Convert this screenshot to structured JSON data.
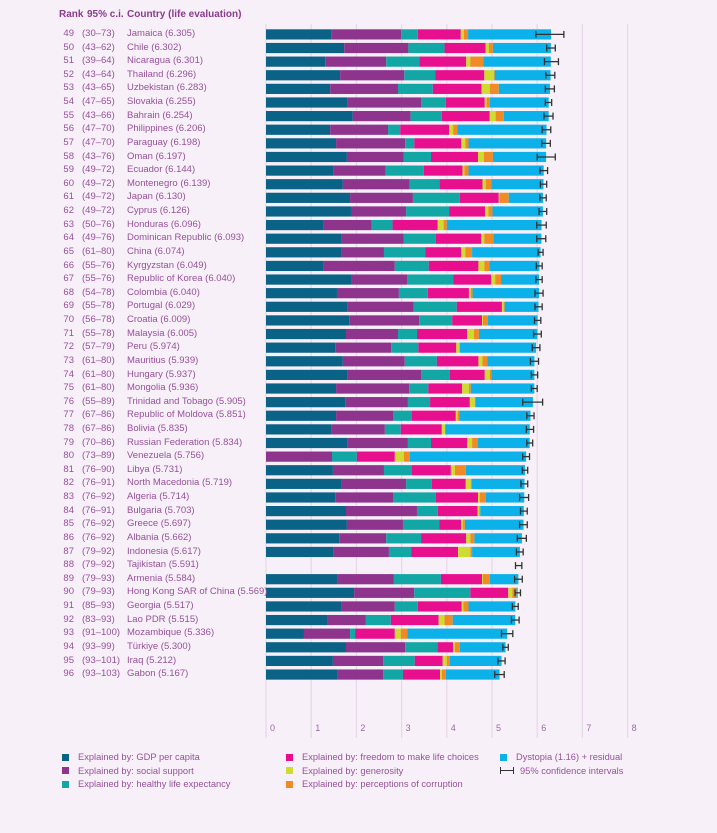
{
  "header": {
    "rank": "Rank",
    "ci": "95% c.i.",
    "country": "Country (life evaluation)"
  },
  "colors": {
    "gdp": "#0a6286",
    "social": "#8e348d",
    "health": "#12a7a4",
    "freedom": "#e80f8f",
    "generosity": "#cedc32",
    "corruption": "#f08a24",
    "dystopia": "#0db1ea",
    "ci": "#333333",
    "grid": "#e6d8e8"
  },
  "legend": [
    {
      "key": "gdp",
      "label": "Explained by: GDP per capita"
    },
    {
      "key": "social",
      "label": "Explained by: social support"
    },
    {
      "key": "health",
      "label": "Explained by: healthy life expectancy"
    },
    {
      "key": "freedom",
      "label": "Explained by: freedom to make life choices"
    },
    {
      "key": "generosity",
      "label": "Explained by: generosity"
    },
    {
      "key": "corruption",
      "label": "Explained by: perceptions of corruption"
    },
    {
      "key": "dystopia",
      "label": "Dystopia (1.16) + residual"
    },
    {
      "key": "ci",
      "label": "95% confidence intervals"
    }
  ],
  "chart_data": {
    "type": "bar",
    "orientation": "horizontal-stacked",
    "title": "",
    "xlabel": "",
    "ylabel": "",
    "xlim": [
      0,
      8
    ],
    "x_ticks": [
      "0",
      "1",
      "2",
      "3",
      "4",
      "5",
      "6",
      "7",
      "8"
    ],
    "grid": true,
    "legend_position": "bottom",
    "segment_keys": [
      "gdp",
      "social",
      "health",
      "freedom",
      "generosity",
      "corruption",
      "dystopia"
    ],
    "rows": [
      {
        "rank": "49",
        "ci": "(30–73)",
        "country": "Jamaica (6.305)",
        "score": 6.305,
        "seg": [
          1.44,
          1.55,
          0.37,
          0.95,
          0.07,
          0.09
        ],
        "ci_range": [
          5.97,
          6.59
        ]
      },
      {
        "rank": "50",
        "ci": "(43–62)",
        "country": "Chile (6.302)",
        "score": 6.302,
        "seg": [
          1.73,
          1.42,
          0.8,
          0.91,
          0.07,
          0.09
        ],
        "ci_range": [
          6.21,
          6.4
        ]
      },
      {
        "rank": "51",
        "ci": "(39–64)",
        "country": "Nicaragua (6.301)",
        "score": 6.301,
        "seg": [
          1.31,
          1.35,
          0.73,
          1.04,
          0.09,
          0.29
        ],
        "ci_range": [
          6.16,
          6.47
        ]
      },
      {
        "rank": "52",
        "ci": "(43–64)",
        "country": "Thailand (6.296)",
        "score": 6.296,
        "seg": [
          1.64,
          1.42,
          0.69,
          1.08,
          0.21,
          0.02
        ],
        "ci_range": [
          6.19,
          6.39
        ]
      },
      {
        "rank": "53",
        "ci": "(43–65)",
        "country": "Uzbekistan (6.283)",
        "score": 6.283,
        "seg": [
          1.42,
          1.5,
          0.77,
          1.08,
          0.18,
          0.2
        ],
        "ci_range": [
          6.18,
          6.38
        ]
      },
      {
        "rank": "54",
        "ci": "(47–65)",
        "country": "Slovakia (6.255)",
        "score": 6.255,
        "seg": [
          1.81,
          1.62,
          0.55,
          0.86,
          0.04,
          0.07
        ],
        "ci_range": [
          6.18,
          6.32
        ]
      },
      {
        "rank": "55",
        "ci": "(43–66)",
        "country": "Bahrain (6.254)",
        "score": 6.254,
        "seg": [
          1.92,
          1.28,
          0.69,
          1.06,
          0.13,
          0.18
        ],
        "ci_range": [
          6.15,
          6.35
        ]
      },
      {
        "rank": "56",
        "ci": "(47–70)",
        "country": "Philippines (6.206)",
        "score": 6.206,
        "seg": [
          1.42,
          1.28,
          0.27,
          1.08,
          0.09,
          0.09
        ],
        "ci_range": [
          6.11,
          6.3
        ]
      },
      {
        "rank": "57",
        "ci": "(47–70)",
        "country": "Paraguay (6.198)",
        "score": 6.198,
        "seg": [
          1.55,
          1.53,
          0.2,
          1.04,
          0.09,
          0.07
        ],
        "ci_range": [
          6.1,
          6.29
        ]
      },
      {
        "rank": "58",
        "ci": "(43–76)",
        "country": "Oman (6.197)",
        "score": 6.197,
        "seg": [
          1.79,
          1.26,
          0.6,
          1.04,
          0.13,
          0.2
        ],
        "ci_range": [
          6.0,
          6.4
        ]
      },
      {
        "rank": "59",
        "ci": "(49–72)",
        "country": "Ecuador (6.144)",
        "score": 6.144,
        "seg": [
          1.5,
          1.15,
          0.84,
          0.86,
          0.04,
          0.09
        ],
        "ci_range": [
          6.06,
          6.23
        ]
      },
      {
        "rank": "60",
        "ci": "(49–72)",
        "country": "Montenegro (6.139)",
        "score": 6.139,
        "seg": [
          1.7,
          1.48,
          0.66,
          0.95,
          0.07,
          0.13
        ],
        "ci_range": [
          6.07,
          6.21
        ]
      },
      {
        "rank": "61",
        "ci": "(49–72)",
        "country": "Japan (6.130)",
        "score": 6.13,
        "seg": [
          1.86,
          1.39,
          1.04,
          0.86,
          0.02,
          0.2
        ],
        "ci_range": [
          6.06,
          6.2
        ]
      },
      {
        "rank": "62",
        "ci": "(49–72)",
        "country": "Cyprus (6.126)",
        "score": 6.126,
        "seg": [
          1.88,
          1.22,
          0.95,
          0.8,
          0.07,
          0.09
        ],
        "ci_range": [
          6.04,
          6.21
        ]
      },
      {
        "rank": "63",
        "ci": "(50–76)",
        "country": "Honduras (6.096)",
        "score": 6.096,
        "seg": [
          1.28,
          1.06,
          0.46,
          1.0,
          0.13,
          0.07
        ],
        "ci_range": [
          5.99,
          6.2
        ]
      },
      {
        "rank": "64",
        "ci": "(49–76)",
        "country": "Dominican Republic (6.093)",
        "score": 6.093,
        "seg": [
          1.66,
          1.39,
          0.71,
          1.0,
          0.07,
          0.2
        ],
        "ci_range": [
          5.99,
          6.19
        ]
      },
      {
        "rank": "65",
        "ci": "(61–80)",
        "country": "China (6.074)",
        "score": 6.074,
        "seg": [
          1.66,
          0.95,
          0.91,
          0.8,
          0.09,
          0.15
        ],
        "ci_range": [
          6.02,
          6.13
        ]
      },
      {
        "rank": "66",
        "ci": "(55–76)",
        "country": "Kyrgyzstan (6.049)",
        "score": 6.049,
        "seg": [
          1.28,
          1.57,
          0.75,
          1.1,
          0.13,
          0.11
        ],
        "ci_range": [
          5.98,
          6.11
        ]
      },
      {
        "rank": "67",
        "ci": "(55–76)",
        "country": "Republic of Korea (6.040)",
        "score": 6.04,
        "seg": [
          1.9,
          1.22,
          1.02,
          0.84,
          0.09,
          0.13
        ],
        "ci_range": [
          5.97,
          6.11
        ]
      },
      {
        "rank": "68",
        "ci": "(54–78)",
        "country": "Colombia (6.040)",
        "score": 6.04,
        "seg": [
          1.57,
          1.37,
          0.64,
          0.91,
          0.04,
          0.04
        ],
        "ci_range": [
          5.95,
          6.13
        ]
      },
      {
        "rank": "69",
        "ci": "(55–78)",
        "country": "Portugal (6.029)",
        "score": 6.029,
        "seg": [
          1.81,
          1.46,
          0.95,
          1.0,
          0.04,
          0.02
        ],
        "ci_range": [
          5.95,
          6.11
        ]
      },
      {
        "rank": "70",
        "ci": "(56–78)",
        "country": "Croatia (6.009)",
        "score": 6.009,
        "seg": [
          1.84,
          1.55,
          0.73,
          0.66,
          0.02,
          0.11
        ],
        "ci_range": [
          5.94,
          6.08
        ]
      },
      {
        "rank": "71",
        "ci": "(55–78)",
        "country": "Malaysia (6.005)",
        "score": 6.005,
        "seg": [
          1.77,
          1.15,
          0.42,
          1.11,
          0.15,
          0.11
        ],
        "ci_range": [
          5.92,
          6.09
        ]
      },
      {
        "rank": "72",
        "ci": "(57–79)",
        "country": "Peru (5.974)",
        "score": 5.974,
        "seg": [
          1.53,
          1.24,
          0.6,
          0.84,
          0.07,
          0.01
        ],
        "ci_range": [
          5.89,
          6.06
        ]
      },
      {
        "rank": "73",
        "ci": "(61–80)",
        "country": "Mauritius (5.939)",
        "score": 5.939,
        "seg": [
          1.7,
          1.37,
          0.71,
          0.92,
          0.09,
          0.11
        ],
        "ci_range": [
          5.85,
          6.03
        ]
      },
      {
        "rank": "74",
        "ci": "(61–80)",
        "country": "Hungary (5.937)",
        "score": 5.937,
        "seg": [
          1.81,
          1.62,
          0.64,
          0.77,
          0.11,
          0.04
        ],
        "ci_range": [
          5.87,
          6.01
        ]
      },
      {
        "rank": "75",
        "ci": "(61–80)",
        "country": "Mongolia (5.936)",
        "score": 5.936,
        "seg": [
          1.55,
          1.62,
          0.42,
          0.75,
          0.15,
          0.04
        ],
        "ci_range": [
          5.87,
          6.0
        ]
      },
      {
        "rank": "76",
        "ci": "(55–89)",
        "country": "Trinidad and Tobago (5.905)",
        "score": 5.905,
        "seg": [
          1.75,
          1.39,
          0.49,
          0.88,
          0.11,
          0.01
        ],
        "ci_range": [
          5.68,
          6.12
        ]
      },
      {
        "rank": "77",
        "ci": "(67–86)",
        "country": "Republic of Moldova (5.851)",
        "score": 5.851,
        "seg": [
          1.55,
          1.26,
          0.42,
          0.97,
          0.04,
          0.04
        ],
        "ci_range": [
          5.77,
          5.93
        ]
      },
      {
        "rank": "78",
        "ci": "(67–86)",
        "country": "Bolivia (5.835)",
        "score": 5.835,
        "seg": [
          1.44,
          1.19,
          0.35,
          0.91,
          0.07,
          0.01
        ],
        "ci_range": [
          5.76,
          5.92
        ]
      },
      {
        "rank": "79",
        "ci": "(70–86)",
        "country": "Russian Federation (5.834)",
        "score": 5.834,
        "seg": [
          1.81,
          1.33,
          0.51,
          0.8,
          0.11,
          0.13
        ],
        "ci_range": [
          5.77,
          5.9
        ]
      },
      {
        "rank": "80",
        "ci": "(73–89)",
        "country": "Venezuela (5.756)",
        "score": 5.756,
        "seg": [
          0.0,
          1.46,
          0.55,
          0.84,
          0.2,
          0.13
        ],
        "ci_range": [
          5.68,
          5.83
        ]
      },
      {
        "rank": "81",
        "ci": "(76–90)",
        "country": "Libya (5.731)",
        "score": 5.731,
        "seg": [
          1.48,
          1.13,
          0.62,
          0.86,
          0.09,
          0.24
        ],
        "ci_range": [
          5.67,
          5.79
        ]
      },
      {
        "rank": "82",
        "ci": "(76–91)",
        "country": "North Macedonia (5.719)",
        "score": 5.719,
        "seg": [
          1.66,
          1.44,
          0.57,
          0.75,
          0.11,
          0.02
        ],
        "ci_range": [
          5.64,
          5.79
        ]
      },
      {
        "rank": "83",
        "ci": "(76–92)",
        "country": "Algeria (5.714)",
        "score": 5.714,
        "seg": [
          1.53,
          1.28,
          0.95,
          0.93,
          0.04,
          0.13
        ],
        "ci_range": [
          5.61,
          5.81
        ]
      },
      {
        "rank": "84",
        "ci": "(76–91)",
        "country": "Bulgaria (5.703)",
        "score": 5.703,
        "seg": [
          1.77,
          1.57,
          0.46,
          0.88,
          0.04,
          0.02
        ],
        "ci_range": [
          5.63,
          5.78
        ]
      },
      {
        "rank": "85",
        "ci": "(76–92)",
        "country": "Greece (5.697)",
        "score": 5.697,
        "seg": [
          1.79,
          1.24,
          0.8,
          0.49,
          0.04,
          0.04
        ],
        "ci_range": [
          5.61,
          5.78
        ]
      },
      {
        "rank": "86",
        "ci": "(76–92)",
        "country": "Albania (5.662)",
        "score": 5.662,
        "seg": [
          1.62,
          1.04,
          0.77,
          1.0,
          0.09,
          0.09
        ],
        "ci_range": [
          5.56,
          5.76
        ]
      },
      {
        "rank": "87",
        "ci": "(79–92)",
        "country": "Indonesia (5.617)",
        "score": 5.617,
        "seg": [
          1.5,
          1.22,
          0.49,
          1.04,
          0.27,
          0.04
        ],
        "ci_range": [
          5.54,
          5.69
        ]
      },
      {
        "rank": "88",
        "ci": "(79–92)",
        "country": "Tajikistan (5.591)",
        "score": 5.591,
        "seg": null,
        "ci_range": [
          5.52,
          5.66
        ]
      },
      {
        "rank": "89",
        "ci": "(79–93)",
        "country": "Armenia  (5.584)",
        "score": 5.584,
        "seg": [
          1.59,
          1.24,
          1.04,
          0.91,
          0.02,
          0.15
        ],
        "ci_range": [
          5.5,
          5.67
        ]
      },
      {
        "rank": "90",
        "ci": "(79–93)",
        "country": "Hong Kong SAR of China (5.569)",
        "score": 5.569,
        "seg": [
          1.95,
          1.33,
          1.24,
          0.84,
          0.09,
          0.09
        ],
        "ci_range": [
          5.51,
          5.63
        ]
      },
      {
        "rank": "91",
        "ci": "(85–93)",
        "country": "Georgia (5.517)",
        "score": 5.517,
        "seg": [
          1.66,
          1.19,
          0.51,
          0.97,
          0.04,
          0.11
        ],
        "ci_range": [
          5.45,
          5.58
        ]
      },
      {
        "rank": "92",
        "ci": "(83–93)",
        "country": "Lao PDR (5.515)",
        "score": 5.515,
        "seg": [
          1.35,
          0.86,
          0.55,
          1.06,
          0.13,
          0.18
        ],
        "ci_range": [
          5.43,
          5.6
        ]
      },
      {
        "rank": "93",
        "ci": "(91–100)",
        "country": "Mozambique (5.336)",
        "score": 5.336,
        "seg": [
          0.84,
          1.02,
          0.11,
          0.88,
          0.13,
          0.15
        ],
        "ci_range": [
          5.21,
          5.46
        ]
      },
      {
        "rank": "94",
        "ci": "(93–99)",
        "country": "Türkiye (5.300)",
        "score": 5.3,
        "seg": [
          1.77,
          1.31,
          0.71,
          0.35,
          0.04,
          0.11
        ],
        "ci_range": [
          5.24,
          5.36
        ]
      },
      {
        "rank": "95",
        "ci": "(93–101)",
        "country": "Iraq (5.212)",
        "score": 5.212,
        "seg": [
          1.48,
          1.11,
          0.7,
          0.62,
          0.09,
          0.07
        ],
        "ci_range": [
          5.13,
          5.29
        ]
      },
      {
        "rank": "96",
        "ci": "(93–103)",
        "country": "Gabon (5.167)",
        "score": 5.167,
        "seg": [
          1.59,
          1.0,
          0.44,
          0.82,
          0.04,
          0.09
        ],
        "ci_range": [
          5.06,
          5.27
        ]
      }
    ]
  }
}
